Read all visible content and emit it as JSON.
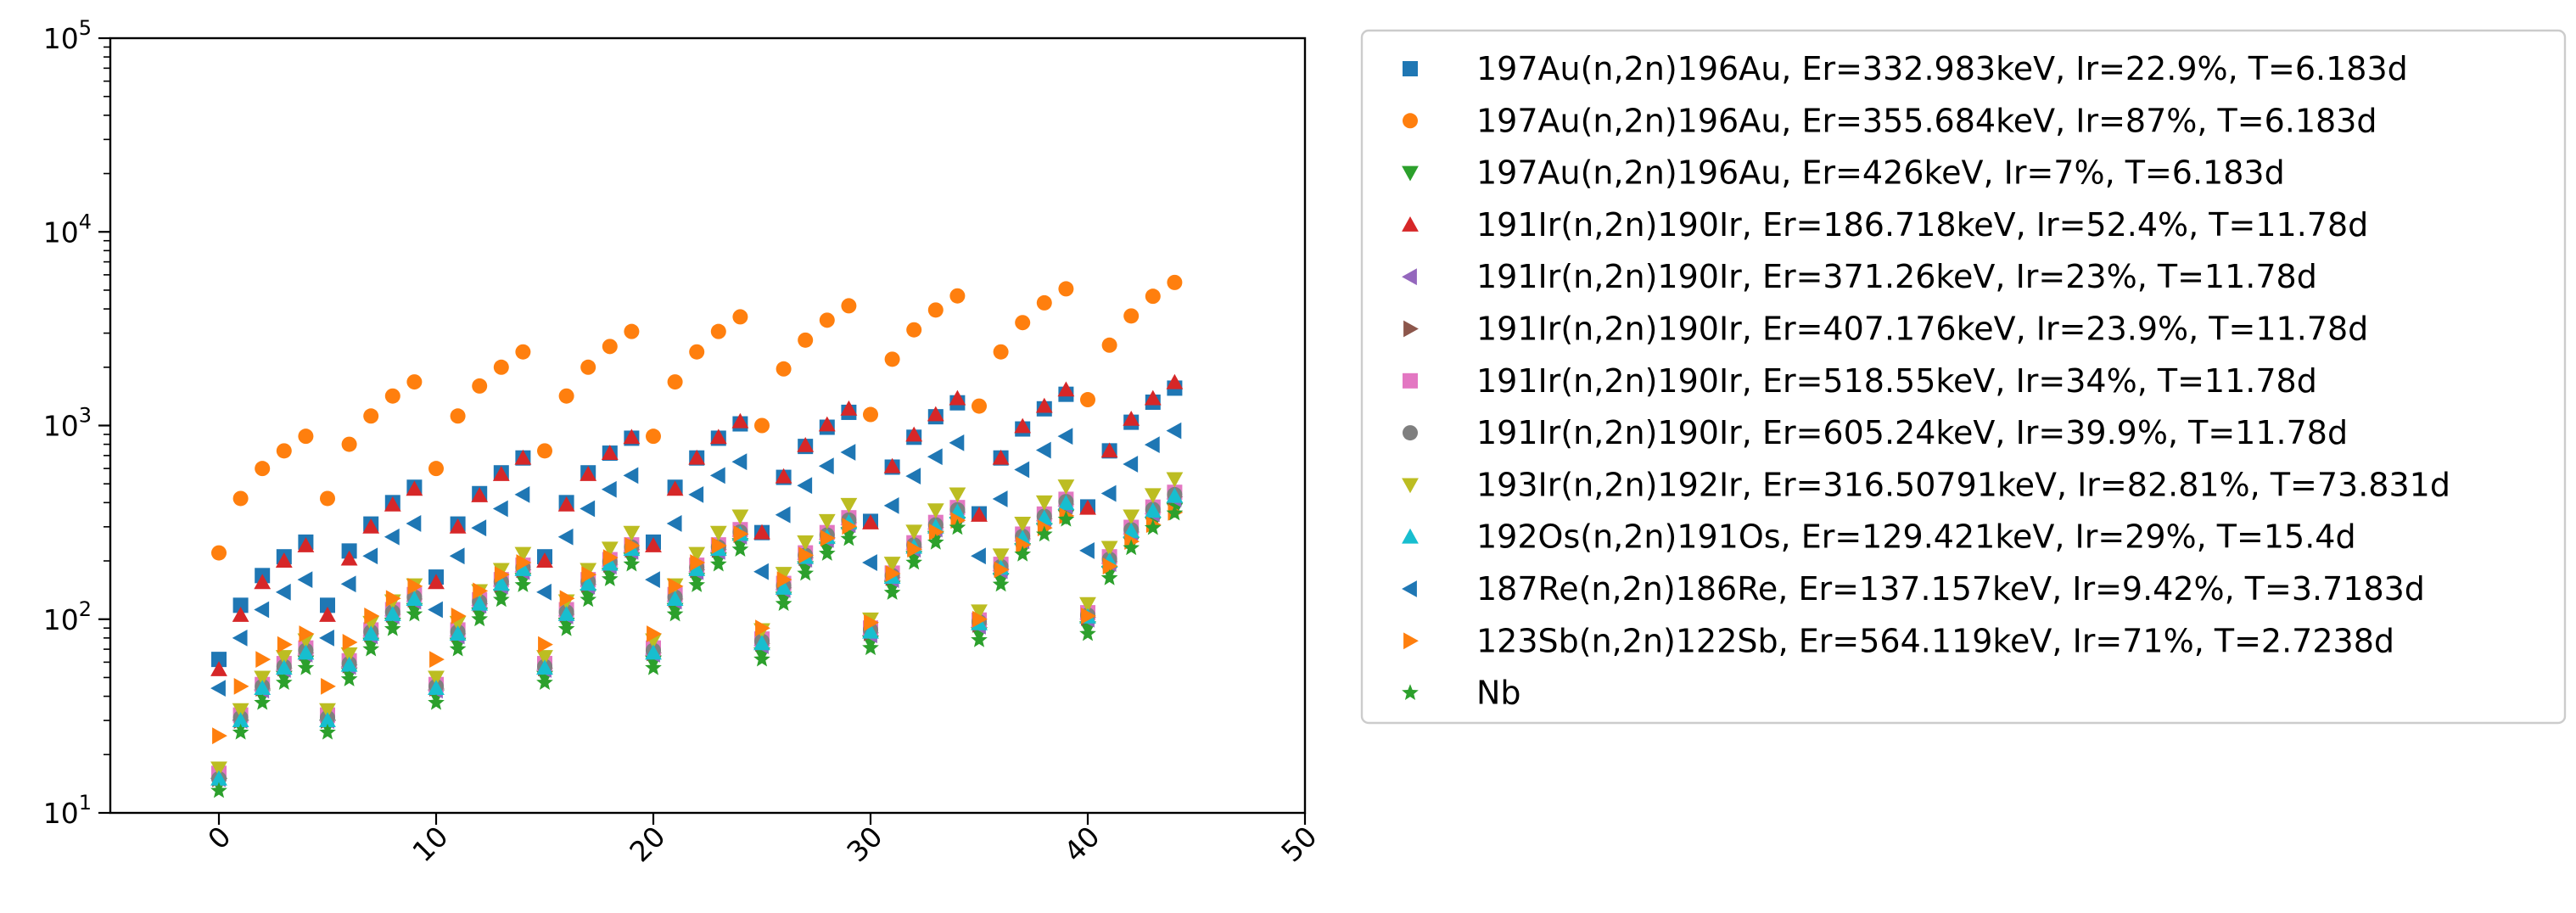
{
  "chart_data": {
    "type": "scatter",
    "title": "",
    "xlabel": "",
    "ylabel": "",
    "xlim": [
      -5,
      50
    ],
    "ylim": [
      10,
      100000
    ],
    "yscale": "log",
    "grid": false,
    "legend_position": "outside-right",
    "x_ticks": [
      0,
      10,
      20,
      30,
      40,
      50
    ],
    "x_tick_labels": [
      "0",
      "10",
      "20",
      "30",
      "40",
      "50"
    ],
    "y_ticks": [
      10,
      100,
      1000,
      10000,
      100000
    ],
    "y_tick_labels": [
      {
        "base": "10",
        "exp": "1"
      },
      {
        "base": "10",
        "exp": "2"
      },
      {
        "base": "10",
        "exp": "3"
      },
      {
        "base": "10",
        "exp": "4"
      },
      {
        "base": "10",
        "exp": "5"
      }
    ],
    "x": [
      0,
      1,
      2,
      3,
      4,
      5,
      6,
      7,
      8,
      9,
      10,
      11,
      12,
      13,
      14,
      15,
      16,
      17,
      18,
      19,
      20,
      21,
      22,
      23,
      24,
      25,
      26,
      27,
      28,
      29,
      30,
      31,
      32,
      33,
      34,
      35,
      36,
      37,
      38,
      39,
      40,
      41,
      42,
      43,
      44
    ],
    "series": [
      {
        "name": "197Au(n,2n)196Au, Er=332.983keV, Ir=22.9%, T=6.183d",
        "marker": "square",
        "color": "#1f77b4",
        "values": [
          62,
          118,
          168,
          210,
          250,
          118,
          225,
          310,
          400,
          480,
          165,
          310,
          445,
          570,
          680,
          210,
          400,
          570,
          720,
          860,
          250,
          480,
          680,
          860,
          1020,
          280,
          540,
          780,
          980,
          1170,
          320,
          610,
          870,
          1110,
          1310,
          350,
          680,
          960,
          1220,
          1450,
          380,
          740,
          1040,
          1320,
          1560
        ]
      },
      {
        "name": "197Au(n,2n)196Au, Er=355.684keV, Ir=87%, T=6.183d",
        "marker": "circle",
        "color": "#ff7f0e",
        "values": [
          220,
          420,
          600,
          740,
          880,
          420,
          800,
          1120,
          1420,
          1680,
          600,
          1120,
          1600,
          2000,
          2400,
          740,
          1420,
          2000,
          2560,
          3060,
          880,
          1680,
          2400,
          3060,
          3640,
          1000,
          1960,
          2760,
          3500,
          4150,
          1140,
          2200,
          3120,
          3950,
          4670,
          1260,
          2400,
          3400,
          4300,
          5080,
          1360,
          2600,
          3680,
          4650,
          5480
        ]
      },
      {
        "name": "197Au(n,2n)196Au, Er=426keV, Ir=7%, T=6.183d",
        "marker": "triangle-down",
        "color": "#2ca02c",
        "values": [
          14,
          28,
          40,
          50,
          60,
          28,
          52,
          74,
          94,
          112,
          40,
          74,
          106,
          132,
          160,
          50,
          94,
          132,
          170,
          204,
          60,
          112,
          160,
          204,
          242,
          66,
          128,
          184,
          232,
          276,
          76,
          146,
          208,
          264,
          312,
          84,
          160,
          228,
          290,
          340,
          90,
          174,
          246,
          312,
          368
        ]
      },
      {
        "name": "191Ir(n,2n)190Ir, Er=186.718keV, Ir=52.4%, T=11.78d",
        "marker": "triangle-up",
        "color": "#d62728",
        "values": [
          55,
          105,
          155,
          200,
          240,
          105,
          205,
          300,
          390,
          470,
          155,
          300,
          435,
          560,
          680,
          200,
          390,
          560,
          720,
          870,
          240,
          470,
          680,
          870,
          1050,
          280,
          545,
          790,
          1010,
          1220,
          315,
          615,
          895,
          1140,
          1380,
          345,
          680,
          990,
          1260,
          1530,
          375,
          740,
          1080,
          1380,
          1670
        ]
      },
      {
        "name": "191Ir(n,2n)190Ir, Er=371.26keV, Ir=23%, T=11.78d",
        "marker": "triangle-left",
        "color": "#9467bd",
        "values": [
          15,
          30,
          43,
          55,
          66,
          30,
          57,
          82,
          104,
          124,
          43,
          82,
          118,
          148,
          176,
          55,
          104,
          148,
          188,
          224,
          66,
          124,
          176,
          224,
          268,
          73,
          142,
          204,
          258,
          308,
          83,
          160,
          230,
          292,
          348,
          92,
          178,
          254,
          322,
          384,
          100,
          194,
          276,
          350,
          418
        ]
      },
      {
        "name": "191Ir(n,2n)190Ir, Er=407.176keV, Ir=23.9%, T=11.78d",
        "marker": "triangle-right",
        "color": "#8c564b",
        "values": [
          15,
          30,
          44,
          56,
          67,
          30,
          58,
          84,
          106,
          127,
          44,
          84,
          120,
          151,
          180,
          56,
          106,
          151,
          192,
          229,
          67,
          127,
          180,
          229,
          274,
          75,
          145,
          208,
          264,
          315,
          85,
          164,
          235,
          298,
          356,
          94,
          182,
          260,
          330,
          393,
          102,
          198,
          282,
          358,
          428
        ]
      },
      {
        "name": "191Ir(n,2n)190Ir, Er=518.55keV, Ir=34%, T=11.78d",
        "marker": "square",
        "color": "#e377c2",
        "values": [
          16,
          32,
          46,
          59,
          71,
          32,
          61,
          88,
          112,
          134,
          46,
          88,
          126,
          160,
          190,
          59,
          112,
          160,
          203,
          242,
          71,
          134,
          190,
          242,
          290,
          79,
          153,
          220,
          280,
          334,
          90,
          173,
          248,
          316,
          377,
          99,
          192,
          275,
          349,
          416,
          108,
          210,
          298,
          379,
          452
        ]
      },
      {
        "name": "191Ir(n,2n)190Ir, Er=605.24keV, Ir=39.9%, T=11.78d",
        "marker": "circle",
        "color": "#7f7f7f",
        "values": [
          15,
          31,
          45,
          57,
          69,
          31,
          59,
          86,
          109,
          130,
          45,
          86,
          123,
          156,
          185,
          57,
          109,
          156,
          198,
          236,
          69,
          130,
          185,
          236,
          282,
          77,
          149,
          214,
          272,
          325,
          88,
          168,
          242,
          307,
          367,
          97,
          187,
          268,
          340,
          405,
          105,
          204,
          290,
          369,
          440
        ]
      },
      {
        "name": "193Ir(n,2n)192Ir, Er=316.50791keV, Ir=82.81%, T=73.831d",
        "marker": "triangle-down",
        "color": "#bcbd22",
        "values": [
          17,
          34,
          50,
          64,
          78,
          34,
          66,
          96,
          124,
          150,
          50,
          96,
          140,
          180,
          218,
          64,
          124,
          180,
          232,
          280,
          78,
          150,
          218,
          280,
          340,
          88,
          172,
          250,
          322,
          390,
          100,
          194,
          284,
          366,
          442,
          110,
          214,
          312,
          402,
          486,
          120,
          234,
          340,
          438,
          530
        ]
      },
      {
        "name": "192Os(n,2n)191Os, Er=129.421keV, Ir=29%, T=15.4d",
        "marker": "triangle-up",
        "color": "#17becf",
        "values": [
          15,
          30,
          44,
          56,
          67,
          30,
          58,
          84,
          106,
          127,
          44,
          84,
          120,
          152,
          181,
          56,
          106,
          152,
          193,
          230,
          67,
          127,
          181,
          230,
          275,
          75,
          145,
          209,
          265,
          316,
          86,
          165,
          236,
          300,
          358,
          95,
          184,
          262,
          333,
          397,
          103,
          200,
          285,
          362,
          432
        ]
      },
      {
        "name": "187Re(n,2n)186Re, Er=137.157keV, Ir=9.42%, T=3.7183d",
        "marker": "triangle-left",
        "color": "#1f77b4",
        "values": [
          44,
          80,
          112,
          138,
          160,
          80,
          152,
          212,
          266,
          312,
          112,
          212,
          296,
          372,
          440,
          138,
          266,
          372,
          468,
          552,
          160,
          312,
          440,
          552,
          650,
          176,
          346,
          490,
          618,
          728,
          196,
          386,
          548,
          690,
          814,
          212,
          418,
          592,
          746,
          880,
          226,
          446,
          632,
          796,
          940
        ]
      },
      {
        "name": "123Sb(n,2n)122Sb, Er=564.119keV, Ir=71%, T=2.7238d",
        "marker": "triangle-right",
        "color": "#ff7f0e",
        "values": [
          25,
          45,
          62,
          74,
          84,
          45,
          76,
          104,
          128,
          148,
          62,
          104,
          140,
          170,
          196,
          74,
          128,
          170,
          208,
          240,
          84,
          148,
          196,
          240,
          276,
          90,
          160,
          214,
          262,
          302,
          96,
          172,
          230,
          282,
          324,
          100,
          180,
          242,
          296,
          342,
          104,
          188,
          252,
          308,
          356
        ]
      },
      {
        "name": "Nb",
        "marker": "star",
        "color": "#2ca02c",
        "values": [
          13,
          26,
          37,
          47,
          56,
          26,
          49,
          70,
          89,
          106,
          37,
          70,
          100,
          126,
          150,
          47,
          89,
          126,
          161,
          192,
          56,
          106,
          150,
          192,
          229,
          62,
          120,
          172,
          218,
          260,
          71,
          137,
          196,
          249,
          297,
          78,
          151,
          216,
          274,
          327,
          84,
          163,
          233,
          296,
          352
        ]
      }
    ]
  }
}
